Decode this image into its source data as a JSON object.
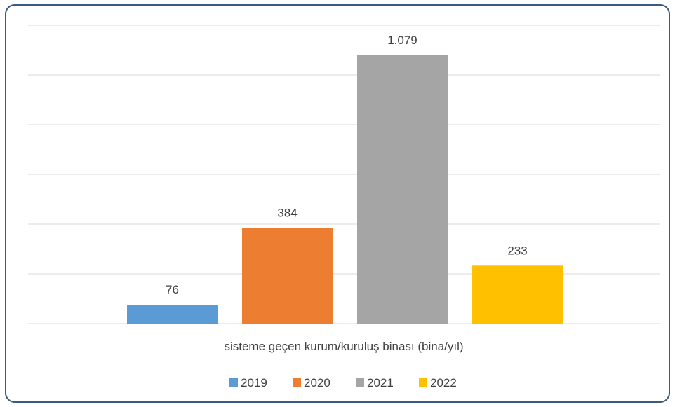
{
  "chart_data": {
    "type": "bar",
    "categories": [
      "sisteme geçen kurum/kuruluş binası (bina/yıl)"
    ],
    "series": [
      {
        "name": "2019",
        "values": [
          76
        ],
        "label": "76",
        "color": "#5b9bd5"
      },
      {
        "name": "2020",
        "values": [
          384
        ],
        "label": "384",
        "color": "#ed7d31"
      },
      {
        "name": "2021",
        "values": [
          1079
        ],
        "label": "1.079",
        "color": "#a5a5a5"
      },
      {
        "name": "2022",
        "values": [
          233
        ],
        "label": "233",
        "color": "#ffc000"
      }
    ],
    "ylim": [
      0,
      1200
    ],
    "gridlines": true,
    "legend_position": "bottom"
  }
}
